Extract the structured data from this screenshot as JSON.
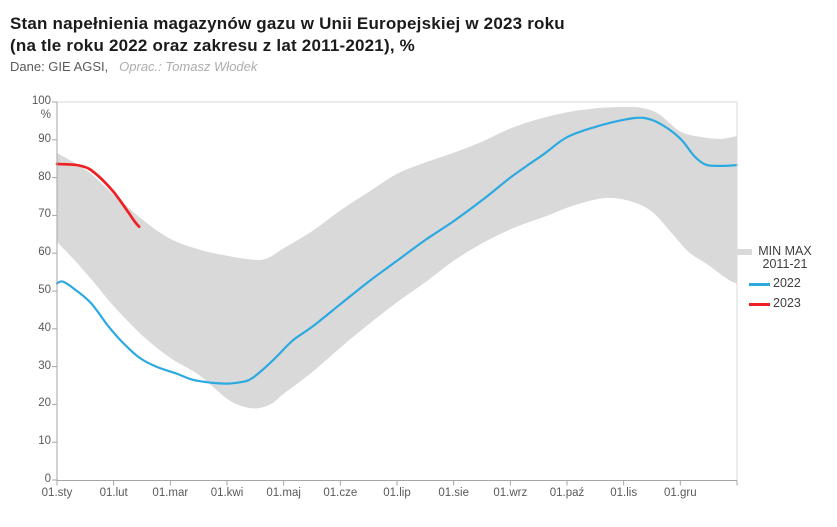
{
  "header": {
    "title_line1": "Stan napełnienia magazynów gazu w Unii Europejskiej w 2023 roku",
    "title_line2": "(na tle roku 2022 oraz zakresu z lat 2011-2021), %",
    "source_label": "Dane: GIE AGSI,",
    "credit_label": "Oprac.: Tomasz Włodek"
  },
  "colors": {
    "band": "#d9d9d9",
    "line_2022": "#2da9e1",
    "line_2023": "#ee2024",
    "axis": "#a6a6a6",
    "border": "#d9d9d9",
    "tick_text": "#595959",
    "legend_text": "#3f3f3f",
    "title_text": "#1b1b1b"
  },
  "chart_data": {
    "type": "area+line",
    "title": "Stan napełnienia magazynów gazu w Unii Europejskiej w 2023 roku (na tle roku 2022 oraz zakresu z lat 2011-2021), %",
    "xlabel": "",
    "ylabel": "%",
    "ylim": [
      0,
      100
    ],
    "xlim_months": [
      0,
      12
    ],
    "grid": false,
    "legend_position": "right",
    "y_ticks": [
      "100",
      "90",
      "80",
      "70",
      "60",
      "50",
      "40",
      "30",
      "20",
      "10",
      "0"
    ],
    "x_tick_labels": [
      "01.sty",
      "01.lut",
      "01.mar",
      "01.kwi",
      "01.maj",
      "01.cze",
      "01.lip",
      "01.sie",
      "01.wrz",
      "01.paź",
      "01.lis",
      "01.gru"
    ],
    "legend": [
      {
        "line1": "MIN MAX",
        "line2": "2011-21",
        "swatch": "band",
        "color": "#d9d9d9"
      },
      {
        "label": "2022",
        "swatch": "line",
        "color": "#2da9e1"
      },
      {
        "label": "2023",
        "swatch": "line",
        "color": "#ee2024"
      }
    ],
    "series": [
      {
        "name": "MIN MAX 2011-21",
        "kind": "band",
        "color": "#d9d9d9",
        "points_max": [
          [
            0,
            86.5
          ],
          [
            0.3,
            84
          ],
          [
            0.6,
            81
          ],
          [
            1,
            75.5
          ],
          [
            1.5,
            69
          ],
          [
            2,
            63.8
          ],
          [
            2.5,
            61
          ],
          [
            3,
            59.3
          ],
          [
            3.45,
            58.3
          ],
          [
            3.7,
            58.6
          ],
          [
            4,
            61.3
          ],
          [
            4.5,
            65.8
          ],
          [
            5,
            71.3
          ],
          [
            5.5,
            76.2
          ],
          [
            6,
            81
          ],
          [
            6.5,
            84
          ],
          [
            7,
            86.6
          ],
          [
            7.5,
            89.5
          ],
          [
            8,
            93
          ],
          [
            8.5,
            95.5
          ],
          [
            9,
            97.3
          ],
          [
            9.5,
            98.3
          ],
          [
            10,
            98.7
          ],
          [
            10.3,
            98.5
          ],
          [
            10.6,
            97
          ],
          [
            11,
            92.2
          ],
          [
            11.35,
            90.8
          ],
          [
            11.7,
            90.2
          ],
          [
            12,
            91
          ]
        ],
        "points_min": [
          [
            0,
            63
          ],
          [
            0.3,
            58.3
          ],
          [
            0.6,
            53.2
          ],
          [
            1,
            46
          ],
          [
            1.5,
            38.3
          ],
          [
            2,
            32.3
          ],
          [
            2.5,
            27.8
          ],
          [
            3,
            21.5
          ],
          [
            3.3,
            19.4
          ],
          [
            3.55,
            19
          ],
          [
            3.8,
            20.3
          ],
          [
            4,
            22.8
          ],
          [
            4.5,
            28.5
          ],
          [
            5,
            35
          ],
          [
            5.5,
            41.2
          ],
          [
            6,
            47
          ],
          [
            6.5,
            52.3
          ],
          [
            7,
            58
          ],
          [
            7.5,
            62.6
          ],
          [
            8,
            66.3
          ],
          [
            8.35,
            68.3
          ],
          [
            8.7,
            70.2
          ],
          [
            9.05,
            72.3
          ],
          [
            9.5,
            74.2
          ],
          [
            9.8,
            74.6
          ],
          [
            10.15,
            73.6
          ],
          [
            10.5,
            71
          ],
          [
            10.85,
            65.3
          ],
          [
            11.15,
            60.3
          ],
          [
            11.45,
            57.3
          ],
          [
            11.85,
            53
          ],
          [
            12,
            52
          ]
        ]
      },
      {
        "name": "2022",
        "kind": "line",
        "color": "#2da9e1",
        "points": [
          [
            0,
            52
          ],
          [
            0.1,
            52.5
          ],
          [
            0.3,
            50.6
          ],
          [
            0.6,
            46.8
          ],
          [
            0.9,
            40.8
          ],
          [
            1.15,
            36.5
          ],
          [
            1.45,
            32.4
          ],
          [
            1.75,
            30
          ],
          [
            2.1,
            28.2
          ],
          [
            2.4,
            26.5
          ],
          [
            2.75,
            25.7
          ],
          [
            3,
            25.5
          ],
          [
            3.25,
            25.9
          ],
          [
            3.45,
            27
          ],
          [
            3.8,
            31.5
          ],
          [
            4.15,
            36.8
          ],
          [
            4.5,
            40.5
          ],
          [
            5,
            46.5
          ],
          [
            5.5,
            52.5
          ],
          [
            6,
            58
          ],
          [
            6.5,
            63.5
          ],
          [
            7,
            68.5
          ],
          [
            7.5,
            74
          ],
          [
            8,
            80
          ],
          [
            8.3,
            83.2
          ],
          [
            8.6,
            86.3
          ],
          [
            9,
            90.7
          ],
          [
            9.5,
            93.4
          ],
          [
            10,
            95.3
          ],
          [
            10.35,
            95.8
          ],
          [
            10.65,
            94.2
          ],
          [
            11,
            90.3
          ],
          [
            11.25,
            85.6
          ],
          [
            11.45,
            83.4
          ],
          [
            11.7,
            83.1
          ],
          [
            12,
            83.3
          ]
        ]
      },
      {
        "name": "2023",
        "kind": "line",
        "color": "#ee2024",
        "points": [
          [
            0,
            83.6
          ],
          [
            0.3,
            83.4
          ],
          [
            0.45,
            83
          ],
          [
            0.57,
            82.3
          ],
          [
            0.7,
            80.8
          ],
          [
            0.83,
            79
          ],
          [
            1,
            76.2
          ],
          [
            1.13,
            73.6
          ],
          [
            1.26,
            70.8
          ],
          [
            1.38,
            68.2
          ],
          [
            1.45,
            67
          ]
        ]
      }
    ]
  }
}
